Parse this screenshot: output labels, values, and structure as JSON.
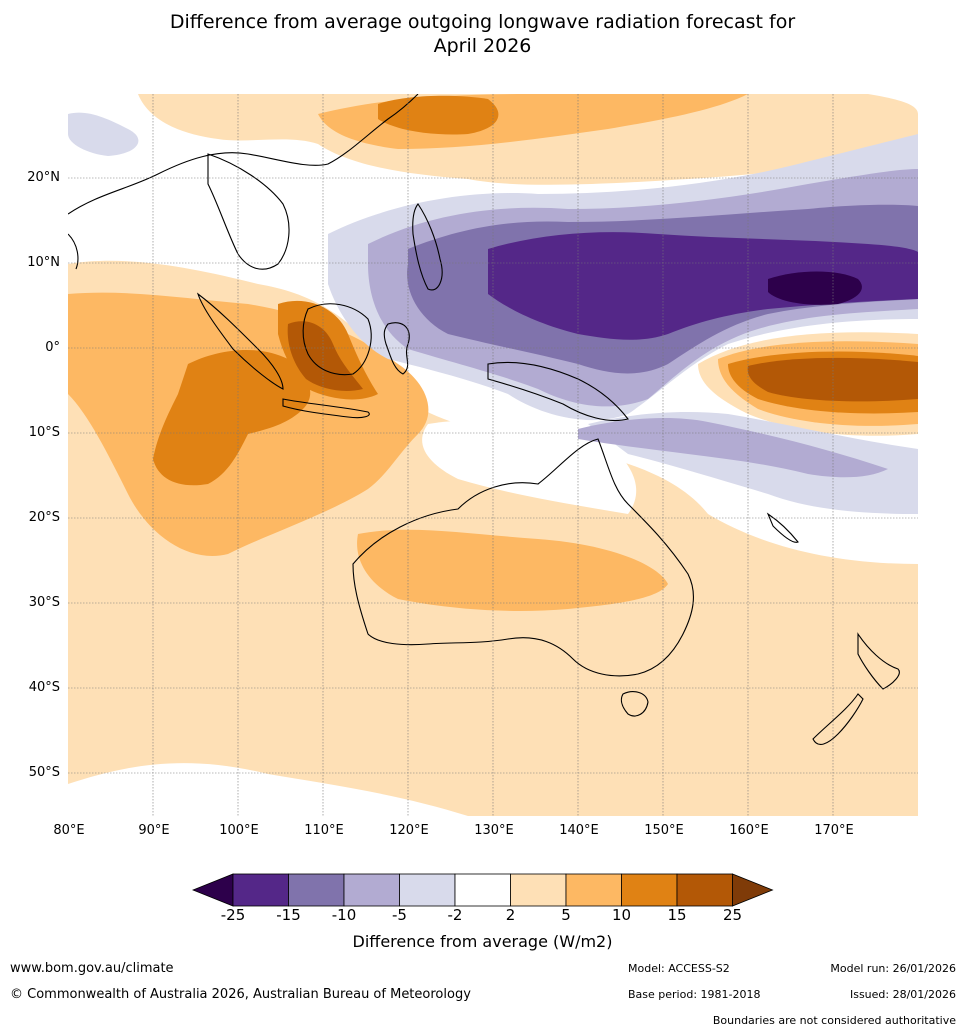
{
  "title_line1": "Difference from average outgoing longwave radiation forecast for",
  "title_line2": "April 2026",
  "lat_labels": [
    "20°N",
    "10°N",
    "0°",
    "10°S",
    "20°S",
    "30°S",
    "40°S",
    "50°S"
  ],
  "lon_labels": [
    "80°E",
    "90°E",
    "100°E",
    "110°E",
    "120°E",
    "130°E",
    "140°E",
    "150°E",
    "160°E",
    "170°E"
  ],
  "colorbar": {
    "ticks": [
      "-25",
      "-15",
      "-10",
      "-5",
      "-2",
      "2",
      "5",
      "10",
      "15",
      "25"
    ],
    "colors": [
      "#2d004b",
      "#542788",
      "#8073ac",
      "#b2abd2",
      "#d8daeb",
      "#ffffff",
      "#fee0b6",
      "#fdb863",
      "#e08214",
      "#b35806",
      "#7f3b08"
    ],
    "label": "Difference from average (W/m2)"
  },
  "footer": {
    "website": "www.bom.gov.au/climate",
    "copyright": "© Commonwealth of Australia 2026, Australian Bureau of Meteorology",
    "model": "Model: ACCESS-S2",
    "model_run": "Model run: 26/01/2026",
    "base_period": "Base period: 1981-2018",
    "issued": "Issued: 28/01/2026",
    "boundaries": "Boundaries are not considered authoritative"
  }
}
